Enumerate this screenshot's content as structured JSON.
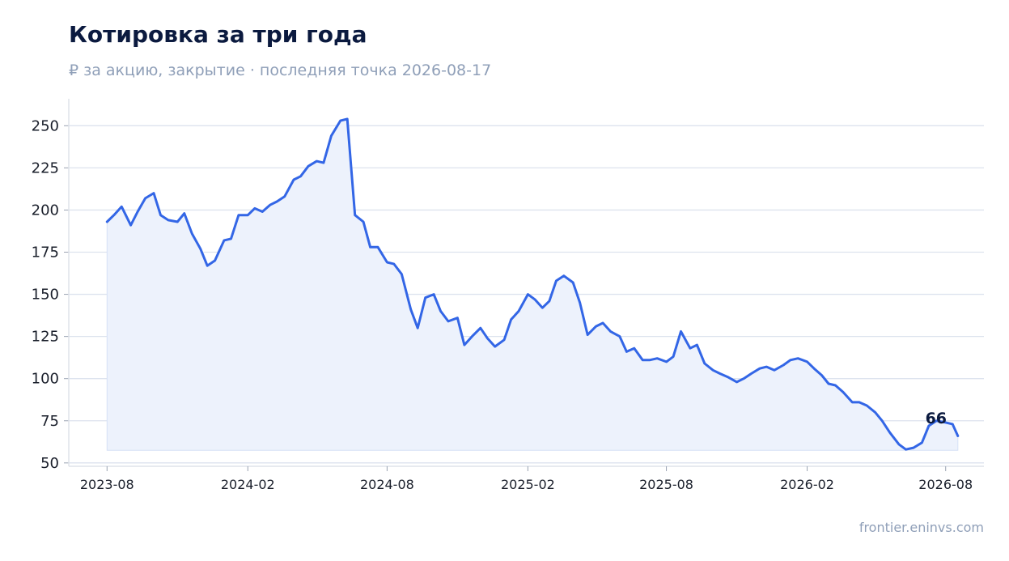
{
  "header": {
    "title": "Котировка за три года",
    "subtitle": "₽ за акцию, закрытие · последняя точка 2026-08-17"
  },
  "footer": {
    "source": "frontier.eninvs.com"
  },
  "colors": {
    "line": "#3366e6",
    "area_fill": "#edf2fc",
    "grid": "#dde3ee",
    "axis": "#dfe3ea",
    "title": "#0b1a3f",
    "muted": "#8f9fb8"
  },
  "chart_data": {
    "type": "area",
    "title": "Котировка за три года",
    "subtitle": "₽ за акцию, закрытие · последняя точка 2026-08-17",
    "xlabel": "",
    "ylabel": "",
    "ylim": [
      48,
      266
    ],
    "yticks": [
      50,
      75,
      100,
      125,
      150,
      175,
      200,
      225,
      250
    ],
    "xlim": [
      "2023-06-12",
      "2026-09-20"
    ],
    "xticks": [
      "2023-08",
      "2024-02",
      "2024-08",
      "2025-02",
      "2025-08",
      "2026-02",
      "2026-08"
    ],
    "grid": true,
    "end_label": "66",
    "series": [
      {
        "x": [
          "2023-08-01",
          "2023-08-10",
          "2023-08-20",
          "2023-09-01",
          "2023-09-10",
          "2023-09-20",
          "2023-10-01",
          "2023-10-10",
          "2023-10-20",
          "2023-11-01",
          "2023-11-10",
          "2023-11-20",
          "2023-12-01",
          "2023-12-10",
          "2023-12-20",
          "2024-01-01",
          "2024-01-10",
          "2024-01-20",
          "2024-02-01",
          "2024-02-10",
          "2024-02-20",
          "2024-03-01",
          "2024-03-10",
          "2024-03-20",
          "2024-04-01",
          "2024-04-10",
          "2024-04-20",
          "2024-05-01",
          "2024-05-10",
          "2024-05-20",
          "2024-06-01",
          "2024-06-10",
          "2024-06-20",
          "2024-07-01",
          "2024-07-10",
          "2024-07-20",
          "2024-08-01",
          "2024-08-10",
          "2024-08-20",
          "2024-09-01",
          "2024-09-10",
          "2024-09-20",
          "2024-10-01",
          "2024-10-10",
          "2024-10-20",
          "2024-11-01",
          "2024-11-10",
          "2024-11-20",
          "2024-12-01",
          "2024-12-10",
          "2024-12-20",
          "2025-01-01",
          "2025-01-10",
          "2025-01-20",
          "2025-02-01",
          "2025-02-10",
          "2025-02-20",
          "2025-03-01",
          "2025-03-10",
          "2025-03-20",
          "2025-04-01",
          "2025-04-10",
          "2025-04-20",
          "2025-05-01",
          "2025-05-10",
          "2025-05-20",
          "2025-06-01",
          "2025-06-10",
          "2025-06-20",
          "2025-07-01",
          "2025-07-10",
          "2025-07-20",
          "2025-08-01",
          "2025-08-10",
          "2025-08-20",
          "2025-09-01",
          "2025-09-10",
          "2025-09-20",
          "2025-10-01",
          "2025-10-10",
          "2025-10-20",
          "2025-11-01",
          "2025-11-10",
          "2025-11-20",
          "2025-12-01",
          "2025-12-10",
          "2025-12-20",
          "2026-01-01",
          "2026-01-10",
          "2026-01-20",
          "2026-02-01",
          "2026-02-10",
          "2026-02-20",
          "2026-03-01",
          "2026-03-10",
          "2026-03-20",
          "2026-04-01",
          "2026-04-10",
          "2026-04-20",
          "2026-05-01",
          "2026-05-10",
          "2026-05-20",
          "2026-06-01",
          "2026-06-10",
          "2026-06-20",
          "2026-07-01",
          "2026-07-10",
          "2026-07-20",
          "2026-08-01",
          "2026-08-10",
          "2026-08-17"
        ],
        "values": [
          193,
          197,
          202,
          191,
          199,
          207,
          210,
          197,
          194,
          193,
          198,
          186,
          177,
          167,
          170,
          182,
          183,
          197,
          197,
          201,
          199,
          203,
          205,
          208,
          218,
          220,
          226,
          229,
          228,
          244,
          253,
          254,
          197,
          193,
          178,
          178,
          169,
          168,
          162,
          141,
          130,
          148,
          150,
          140,
          134,
          136,
          120,
          125,
          130,
          124,
          119,
          123,
          135,
          140,
          150,
          147,
          142,
          146,
          158,
          161,
          157,
          145,
          126,
          131,
          133,
          128,
          125,
          116,
          118,
          111,
          111,
          112,
          110,
          113,
          128,
          118,
          120,
          109,
          105,
          103,
          101,
          98,
          100,
          103,
          106,
          107,
          105,
          108,
          111,
          112,
          110,
          106,
          102,
          97,
          96,
          92,
          86,
          86,
          84,
          80,
          75,
          68,
          61,
          58,
          59,
          62,
          72,
          75,
          74,
          73,
          66
        ]
      }
    ]
  }
}
